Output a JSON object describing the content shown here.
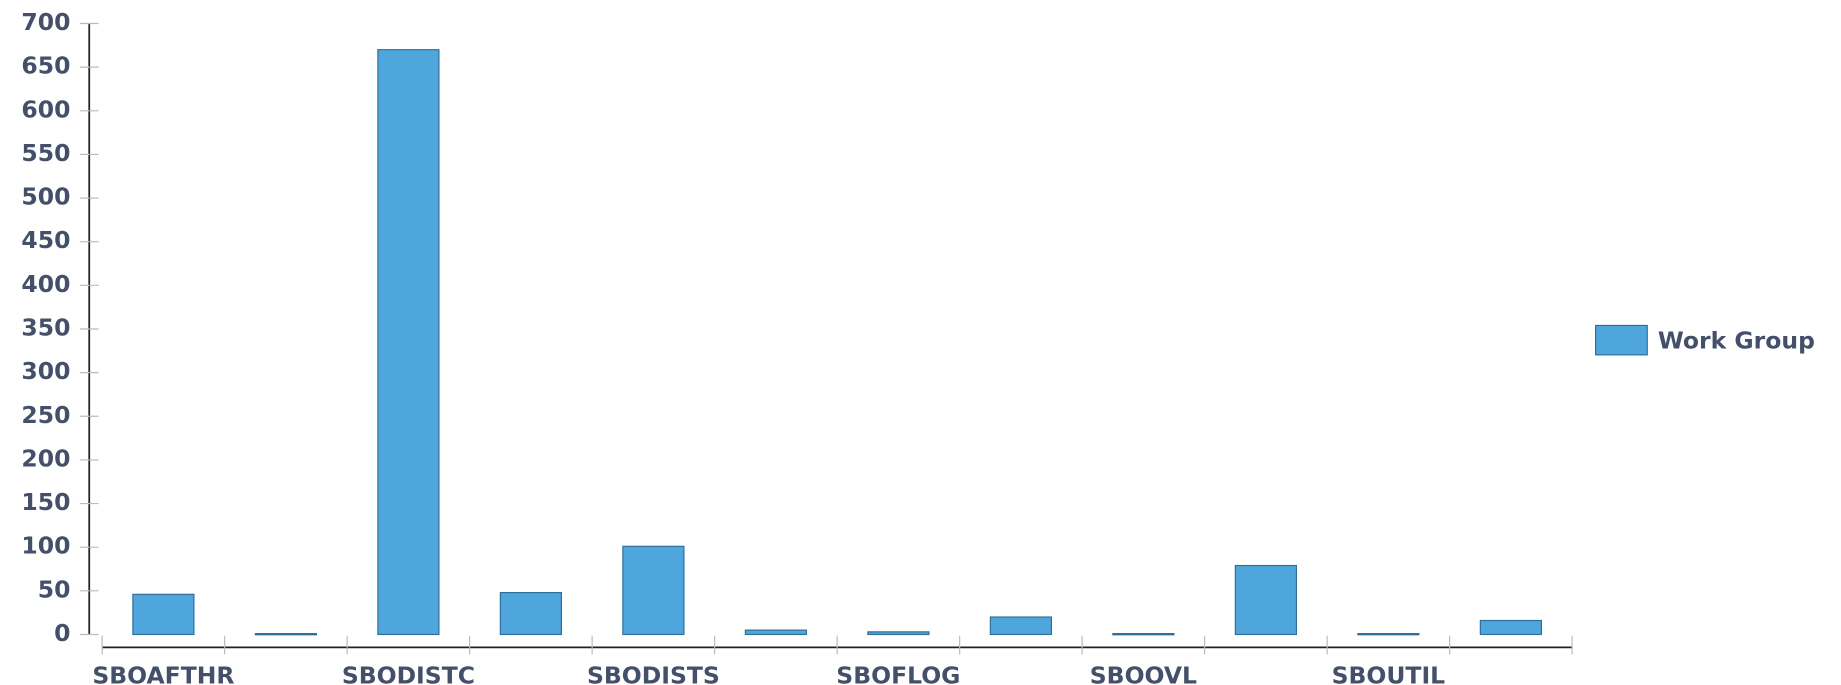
{
  "chart_data": {
    "type": "bar",
    "categories": [
      "SBOAFTHR",
      null,
      "SBODISTC",
      null,
      "SBODISTS",
      null,
      "SBOFLOG",
      null,
      "SBOOVL",
      null,
      "SBOUTIL",
      null
    ],
    "series": [
      {
        "name": "Work Group",
        "color": "#4fa6dc",
        "values": [
          46,
          1,
          670,
          48,
          101,
          5,
          3,
          20,
          1,
          79,
          1,
          16
        ]
      }
    ],
    "ylim": [
      0,
      700
    ],
    "yticks": [
      0,
      50,
      100,
      150,
      200,
      250,
      300,
      350,
      400,
      450,
      500,
      550,
      600,
      650,
      700
    ],
    "legend": "right"
  }
}
